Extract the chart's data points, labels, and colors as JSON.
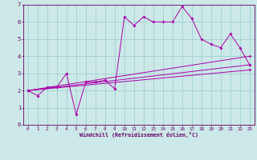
{
  "xlabel": "Windchill (Refroidissement éolien,°C)",
  "bg_color": "#cce8e8",
  "line_color": "#aa00aa",
  "grid_color": "#99cccc",
  "spine_color": "#660066",
  "text_color": "#660066",
  "xlim": [
    -0.5,
    23.5
  ],
  "ylim": [
    0,
    7
  ],
  "xticks": [
    0,
    1,
    2,
    3,
    4,
    5,
    6,
    7,
    8,
    9,
    10,
    11,
    12,
    13,
    14,
    15,
    16,
    17,
    18,
    19,
    20,
    21,
    22,
    23
  ],
  "yticks": [
    0,
    1,
    2,
    3,
    4,
    5,
    6,
    7
  ],
  "series1_x": [
    0,
    1,
    2,
    3,
    4,
    5,
    6,
    7,
    8,
    9,
    10,
    11,
    12,
    13,
    14,
    15,
    16,
    17,
    18,
    19,
    20,
    21,
    22,
    23
  ],
  "series1_y": [
    2.0,
    1.7,
    2.2,
    2.2,
    3.0,
    0.6,
    2.5,
    2.5,
    2.6,
    2.1,
    6.3,
    5.8,
    6.3,
    6.0,
    6.0,
    6.0,
    6.9,
    6.2,
    5.0,
    4.7,
    4.5,
    5.3,
    4.5,
    3.5
  ],
  "series2_x": [
    0,
    23
  ],
  "series2_y": [
    2.0,
    3.5
  ],
  "series3_x": [
    0,
    23
  ],
  "series3_y": [
    2.0,
    4.0
  ],
  "series4_x": [
    0,
    23
  ],
  "series4_y": [
    2.0,
    3.2
  ]
}
